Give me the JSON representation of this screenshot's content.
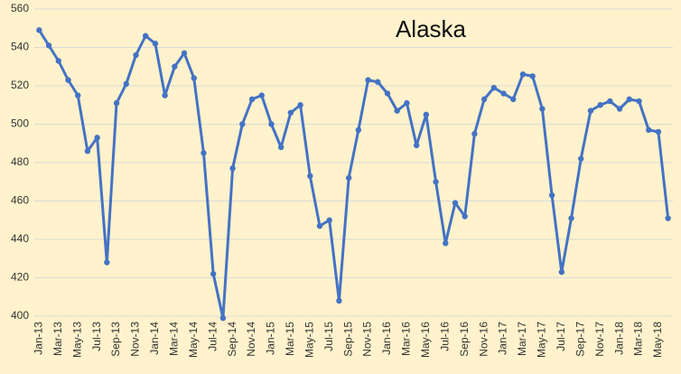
{
  "chart_data": {
    "type": "line",
    "title": "Alaska",
    "categories": [
      "Jan-13",
      null,
      "Mar-13",
      null,
      "May-13",
      null,
      "Jul-13",
      null,
      "Sep-13",
      null,
      "Nov-13",
      null,
      "Jan-14",
      null,
      "Mar-14",
      null,
      "May-14",
      null,
      "Jul-14",
      null,
      "Sep-14",
      null,
      "Nov-14",
      null,
      "Jan-15",
      null,
      "Mar-15",
      null,
      "May-15",
      null,
      "Jul-15",
      null,
      "Sep-15",
      null,
      "Nov-15",
      null,
      "Jan-16",
      null,
      "Mar-16",
      null,
      "May-16",
      null,
      "Jul-16",
      null,
      "Sep-16",
      null,
      "Nov-16",
      null,
      "Jan-17",
      null,
      "Mar-17",
      null,
      "May-17",
      null,
      "Jul-17",
      null,
      "Sep-17",
      null,
      "Nov-17",
      null,
      "Jan-18",
      null,
      "Mar-18",
      null,
      "May-18",
      null
    ],
    "values": [
      549,
      541,
      533,
      523,
      515,
      486,
      493,
      428,
      511,
      521,
      536,
      546,
      542,
      515,
      530,
      537,
      524,
      485,
      422,
      399,
      477,
      500,
      513,
      515,
      500,
      488,
      506,
      510,
      473,
      447,
      450,
      408,
      472,
      497,
      523,
      522,
      516,
      507,
      511,
      489,
      505,
      470,
      438,
      459,
      452,
      495,
      513,
      519,
      516,
      513,
      526,
      525,
      508,
      463,
      423,
      451,
      482,
      507,
      510,
      512,
      508,
      513,
      512,
      497,
      496,
      451
    ],
    "color": "#4472c4",
    "ylim": [
      400,
      560
    ],
    "yticks": [
      400,
      420,
      440,
      460,
      480,
      500,
      520,
      540,
      560
    ],
    "grid": true
  }
}
